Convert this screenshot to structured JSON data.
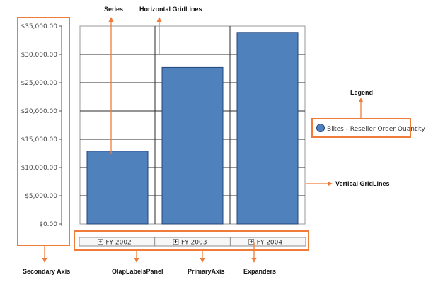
{
  "colors": {
    "accent": "#f07c3b",
    "bar_fill": "#4f81bd",
    "bar_stroke": "#24457a",
    "grid": "#2b2b2b",
    "legend_marker": "#4f81bd"
  },
  "annotations": {
    "series": "Series",
    "horizontal_gridlines": "Horizontal GridLines",
    "legend": "Legend",
    "vertical_gridlines": "Vertical GridLines",
    "secondary_axis": "Secondary Axis",
    "olap_labels_panel": "OlapLabelsPanel",
    "primary_axis": "PrimaryAxis",
    "expanders": "Expanders"
  },
  "expander_icon": "plus-box-icon",
  "chart_data": {
    "type": "bar",
    "categories": [
      "FY 2002",
      "FY 2003",
      "FY 2004"
    ],
    "series": [
      {
        "name": "Bikes - Reseller Order Quantity",
        "values": [
          12900,
          27700,
          33900
        ]
      }
    ],
    "yticks": [
      0,
      5000,
      10000,
      15000,
      20000,
      25000,
      30000,
      35000
    ],
    "ytick_labels": [
      "$0.00",
      "$5,000.00",
      "$10,000.00",
      "$15,000.00",
      "$20,000.00",
      "$25,000.00",
      "$30,000.00",
      "$35,000.00"
    ],
    "ylim": [
      0,
      35000
    ],
    "title": "",
    "xlabel": "",
    "ylabel": "",
    "grid": true,
    "legend_position": "right"
  }
}
